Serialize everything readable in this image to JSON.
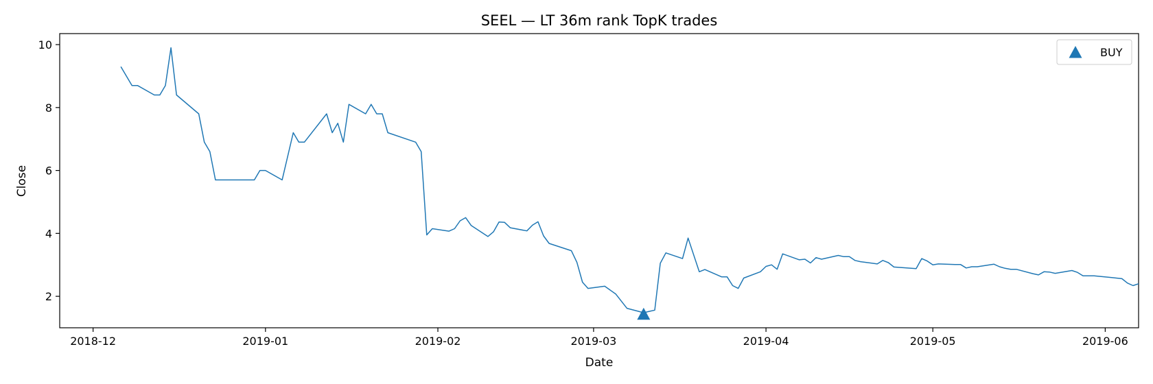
{
  "chart_data": {
    "type": "line",
    "title": "SEEL — LT 36m rank TopK trades",
    "xlabel": "Date",
    "ylabel": "Close",
    "xlim": [
      "2018-11-25",
      "2019-06-07"
    ],
    "ylim": [
      1.0,
      10.35
    ],
    "x_ticks": [
      "2018-12",
      "2019-01",
      "2019-02",
      "2019-03",
      "2019-04",
      "2019-05",
      "2019-06"
    ],
    "y_ticks": [
      2,
      4,
      6,
      8,
      10
    ],
    "grid": false,
    "legend_position": "top-right",
    "line_color": "#1f77b4",
    "series": [
      {
        "points": [
          [
            "2018-12-06",
            9.3
          ],
          [
            "2018-12-08",
            8.7
          ],
          [
            "2018-12-09",
            8.7
          ],
          [
            "2018-12-12",
            8.4
          ],
          [
            "2018-12-13",
            8.4
          ],
          [
            "2018-12-14",
            8.7
          ],
          [
            "2018-12-15",
            9.9
          ],
          [
            "2018-12-16",
            8.4
          ],
          [
            "2018-12-20",
            7.8
          ],
          [
            "2018-12-21",
            6.9
          ],
          [
            "2018-12-22",
            6.6
          ],
          [
            "2018-12-23",
            5.7
          ],
          [
            "2018-12-30",
            5.7
          ],
          [
            "2018-12-31",
            6.0
          ],
          [
            "2019-01-01",
            6.0
          ],
          [
            "2019-01-04",
            5.7
          ],
          [
            "2019-01-06",
            7.2
          ],
          [
            "2019-01-07",
            6.9
          ],
          [
            "2019-01-08",
            6.9
          ],
          [
            "2019-01-12",
            7.8
          ],
          [
            "2019-01-13",
            7.2
          ],
          [
            "2019-01-14",
            7.5
          ],
          [
            "2019-01-15",
            6.9
          ],
          [
            "2019-01-16",
            8.1
          ],
          [
            "2019-01-19",
            7.8
          ],
          [
            "2019-01-20",
            8.1
          ],
          [
            "2019-01-21",
            7.8
          ],
          [
            "2019-01-22",
            7.8
          ],
          [
            "2019-01-23",
            7.2
          ],
          [
            "2019-01-28",
            6.9
          ],
          [
            "2019-01-29",
            6.6
          ],
          [
            "2019-01-30",
            3.95
          ],
          [
            "2019-01-31",
            4.15
          ],
          [
            "2019-02-03",
            4.07
          ],
          [
            "2019-02-04",
            4.15
          ],
          [
            "2019-02-05",
            4.4
          ],
          [
            "2019-02-06",
            4.5
          ],
          [
            "2019-02-07",
            4.25
          ],
          [
            "2019-02-10",
            3.9
          ],
          [
            "2019-02-11",
            4.05
          ],
          [
            "2019-02-12",
            4.36
          ],
          [
            "2019-02-13",
            4.35
          ],
          [
            "2019-02-14",
            4.18
          ],
          [
            "2019-02-17",
            4.08
          ],
          [
            "2019-02-18",
            4.26
          ],
          [
            "2019-02-19",
            4.37
          ],
          [
            "2019-02-20",
            3.92
          ],
          [
            "2019-02-21",
            3.68
          ],
          [
            "2019-02-25",
            3.45
          ],
          [
            "2019-02-26",
            3.08
          ],
          [
            "2019-02-27",
            2.45
          ],
          [
            "2019-02-28",
            2.25
          ],
          [
            "2019-03-03",
            2.32
          ],
          [
            "2019-03-05",
            2.07
          ],
          [
            "2019-03-07",
            1.62
          ],
          [
            "2019-03-10",
            1.48
          ],
          [
            "2019-03-11",
            1.52
          ],
          [
            "2019-03-12",
            1.56
          ],
          [
            "2019-03-13",
            3.05
          ],
          [
            "2019-03-14",
            3.38
          ],
          [
            "2019-03-17",
            3.2
          ],
          [
            "2019-03-18",
            3.85
          ],
          [
            "2019-03-20",
            2.78
          ],
          [
            "2019-03-21",
            2.85
          ],
          [
            "2019-03-24",
            2.62
          ],
          [
            "2019-03-25",
            2.62
          ],
          [
            "2019-03-26",
            2.34
          ],
          [
            "2019-03-27",
            2.25
          ],
          [
            "2019-03-28",
            2.58
          ],
          [
            "2019-03-31",
            2.78
          ],
          [
            "2019-04-01",
            2.95
          ],
          [
            "2019-04-02",
            3.0
          ],
          [
            "2019-04-03",
            2.86
          ],
          [
            "2019-04-04",
            3.35
          ],
          [
            "2019-04-07",
            3.16
          ],
          [
            "2019-04-08",
            3.18
          ],
          [
            "2019-04-09",
            3.06
          ],
          [
            "2019-04-10",
            3.23
          ],
          [
            "2019-04-11",
            3.18
          ],
          [
            "2019-04-14",
            3.3
          ],
          [
            "2019-04-15",
            3.26
          ],
          [
            "2019-04-16",
            3.26
          ],
          [
            "2019-04-17",
            3.14
          ],
          [
            "2019-04-18",
            3.1
          ],
          [
            "2019-04-21",
            3.03
          ],
          [
            "2019-04-22",
            3.14
          ],
          [
            "2019-04-23",
            3.07
          ],
          [
            "2019-04-24",
            2.93
          ],
          [
            "2019-04-28",
            2.88
          ],
          [
            "2019-04-29",
            3.2
          ],
          [
            "2019-04-30",
            3.12
          ],
          [
            "2019-05-01",
            3.0
          ],
          [
            "2019-05-02",
            3.03
          ],
          [
            "2019-05-05",
            3.01
          ],
          [
            "2019-05-06",
            3.01
          ],
          [
            "2019-05-07",
            2.9
          ],
          [
            "2019-05-08",
            2.94
          ],
          [
            "2019-05-09",
            2.94
          ],
          [
            "2019-05-12",
            3.02
          ],
          [
            "2019-05-13",
            2.94
          ],
          [
            "2019-05-14",
            2.89
          ],
          [
            "2019-05-15",
            2.86
          ],
          [
            "2019-05-16",
            2.86
          ],
          [
            "2019-05-19",
            2.72
          ],
          [
            "2019-05-20",
            2.68
          ],
          [
            "2019-05-21",
            2.78
          ],
          [
            "2019-05-22",
            2.77
          ],
          [
            "2019-05-23",
            2.73
          ],
          [
            "2019-05-26",
            2.82
          ],
          [
            "2019-05-27",
            2.76
          ],
          [
            "2019-05-28",
            2.65
          ],
          [
            "2019-05-29",
            2.65
          ],
          [
            "2019-05-30",
            2.65
          ],
          [
            "2019-06-02",
            2.6
          ],
          [
            "2019-06-04",
            2.56
          ],
          [
            "2019-06-05",
            2.42
          ],
          [
            "2019-06-06",
            2.34
          ],
          [
            "2019-06-07",
            2.4
          ]
        ]
      }
    ],
    "markers": [
      {
        "name": "BUY",
        "x": "2019-03-10",
        "y": 1.42,
        "shape": "triangle-up",
        "color": "#1f77b4"
      }
    ],
    "legend": [
      {
        "label": "BUY",
        "shape": "triangle-up",
        "color": "#1f77b4"
      }
    ]
  }
}
